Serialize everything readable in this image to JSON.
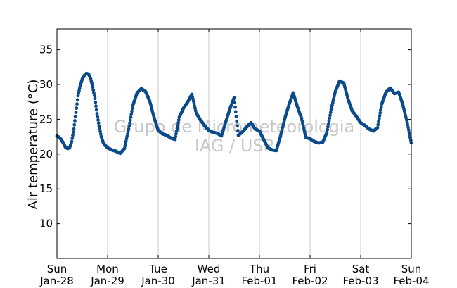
{
  "chart_data": {
    "type": "scatter",
    "title": "",
    "xlabel": "",
    "ylabel": "Air temperature (°C)",
    "ylim": [
      5,
      38
    ],
    "xlim_days": [
      "2018-01-28",
      "2018-02-04"
    ],
    "yticks": [
      10,
      15,
      20,
      25,
      30,
      35
    ],
    "xticks": [
      {
        "day": "Sun",
        "date": "Jan-28"
      },
      {
        "day": "Mon",
        "date": "Jan-29"
      },
      {
        "day": "Tue",
        "date": "Jan-30"
      },
      {
        "day": "Wed",
        "date": "Jan-31"
      },
      {
        "day": "Thu",
        "date": "Feb-01"
      },
      {
        "day": "Fri",
        "date": "Feb-02"
      },
      {
        "day": "Sat",
        "date": "Feb-03"
      },
      {
        "day": "Sun",
        "date": "Feb-04"
      }
    ],
    "grid": "vertical",
    "marker_color": "#0b4a8b",
    "watermark": [
      "Grupo de Micrometeorologia",
      "IAG / USP"
    ],
    "series": [
      {
        "x": [
          "2018-01-28 00:00",
          "2018-01-28 01:00",
          "2018-01-28 02:00",
          "2018-01-28 03:00",
          "2018-01-28 04:00",
          "2018-01-28 05:00",
          "2018-01-28 06:00",
          "2018-01-28 07:00",
          "2018-01-28 08:00",
          "2018-01-28 09:00",
          "2018-01-28 10:00",
          "2018-01-28 11:00",
          "2018-01-28 12:00",
          "2018-01-28 13:00",
          "2018-01-28 14:00",
          "2018-01-28 15:00",
          "2018-01-28 16:00",
          "2018-01-28 17:00",
          "2018-01-28 18:00",
          "2018-01-28 19:00",
          "2018-01-28 20:00",
          "2018-01-28 21:00",
          "2018-01-28 22:00",
          "2018-01-28 23:00",
          "2018-01-29 00:00",
          "2018-01-29 02:00",
          "2018-01-29 04:00",
          "2018-01-29 06:00",
          "2018-01-29 08:00",
          "2018-01-29 10:00",
          "2018-01-29 12:00",
          "2018-01-29 14:00",
          "2018-01-29 16:00",
          "2018-01-29 18:00",
          "2018-01-29 20:00",
          "2018-01-29 22:00",
          "2018-01-30 00:00",
          "2018-01-30 02:00",
          "2018-01-30 04:00",
          "2018-01-30 06:00",
          "2018-01-30 08:00",
          "2018-01-30 10:00",
          "2018-01-30 12:00",
          "2018-01-30 14:00",
          "2018-01-30 16:00",
          "2018-01-30 18:00",
          "2018-01-30 20:00",
          "2018-01-30 22:00",
          "2018-01-31 00:00",
          "2018-01-31 02:00",
          "2018-01-31 04:00",
          "2018-01-31 06:00",
          "2018-01-31 08:00",
          "2018-01-31 10:00",
          "2018-01-31 12:00",
          "2018-01-31 14:00",
          "2018-01-31 16:00",
          "2018-01-31 18:00",
          "2018-01-31 20:00",
          "2018-01-31 22:00",
          "2018-02-01 00:00",
          "2018-02-01 02:00",
          "2018-02-01 04:00",
          "2018-02-01 06:00",
          "2018-02-01 08:00",
          "2018-02-01 10:00",
          "2018-02-01 12:00",
          "2018-02-01 14:00",
          "2018-02-01 16:00",
          "2018-02-01 18:00",
          "2018-02-01 20:00",
          "2018-02-01 22:00",
          "2018-02-02 00:00",
          "2018-02-02 02:00",
          "2018-02-02 04:00",
          "2018-02-02 06:00",
          "2018-02-02 08:00",
          "2018-02-02 10:00",
          "2018-02-02 12:00",
          "2018-02-02 14:00",
          "2018-02-02 16:00",
          "2018-02-02 18:00",
          "2018-02-02 20:00",
          "2018-02-02 22:00",
          "2018-02-03 00:00",
          "2018-02-03 02:00",
          "2018-02-03 04:00",
          "2018-02-03 06:00",
          "2018-02-03 08:00",
          "2018-02-03 10:00",
          "2018-02-03 12:00",
          "2018-02-03 14:00",
          "2018-02-03 16:00",
          "2018-02-03 18:00",
          "2018-02-03 20:00",
          "2018-02-03 22:00",
          "2018-02-04 00:00"
        ],
        "y": [
          22.6,
          22.4,
          22.1,
          21.6,
          21.0,
          20.8,
          20.9,
          21.8,
          23.6,
          26.0,
          28.4,
          29.8,
          30.8,
          31.3,
          31.6,
          31.5,
          30.8,
          29.6,
          28.0,
          25.8,
          24.0,
          22.5,
          21.6,
          21.2,
          20.9,
          20.6,
          20.4,
          20.1,
          20.8,
          23.6,
          27.0,
          28.8,
          29.4,
          29.0,
          27.6,
          25.3,
          23.4,
          22.9,
          22.7,
          22.3,
          22.1,
          25.3,
          26.6,
          27.5,
          28.6,
          25.9,
          24.9,
          24.1,
          23.4,
          23.1,
          23.0,
          22.6,
          24.6,
          26.5,
          28.1,
          22.7,
          23.2,
          23.9,
          24.5,
          23.6,
          23.3,
          22.1,
          20.9,
          20.6,
          20.5,
          22.6,
          25.1,
          27.1,
          28.8,
          26.8,
          25.1,
          22.4,
          22.2,
          21.8,
          21.6,
          21.7,
          23.1,
          26.4,
          29.0,
          30.5,
          30.2,
          27.9,
          26.2,
          25.4,
          24.5,
          24.1,
          23.6,
          23.3,
          23.8,
          27.2,
          28.9,
          29.5,
          28.7,
          28.9,
          27.1,
          24.6,
          21.6
        ]
      }
    ]
  }
}
